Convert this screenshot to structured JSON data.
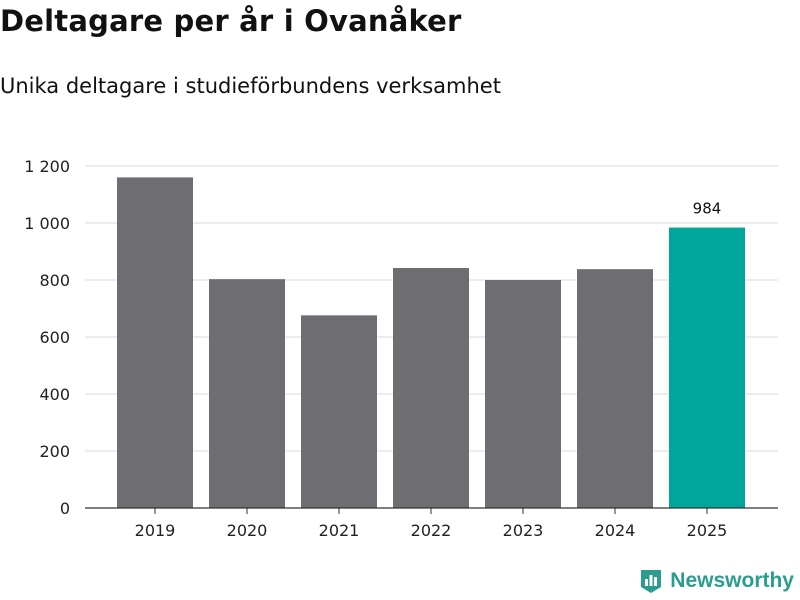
{
  "header": {
    "title": "Deltagare per år i Ovanåker",
    "subtitle": "Unika deltagare i studieförbundens verksamhet"
  },
  "brand": {
    "name": "Newsworthy",
    "icon": "newsworthy-logo-icon",
    "color": "#2a9d8f"
  },
  "chart_data": {
    "type": "bar",
    "title": "Deltagare per år i Ovanåker",
    "subtitle": "Unika deltagare i studieförbundens verksamhet",
    "xlabel": "",
    "ylabel": "",
    "categories": [
      "2019",
      "2020",
      "2021",
      "2022",
      "2023",
      "2024",
      "2025"
    ],
    "values": [
      1160,
      803,
      676,
      842,
      800,
      838,
      984
    ],
    "highlight_index": 6,
    "data_labels": [
      {
        "index": 6,
        "text": "984"
      }
    ],
    "ylim": [
      0,
      1200
    ],
    "yticks": [
      0,
      200,
      400,
      600,
      800,
      1000,
      1200
    ],
    "ytick_labels": [
      "0",
      "200",
      "400",
      "600",
      "800",
      "1 000",
      "1 200"
    ],
    "grid": true,
    "colors": {
      "bar": "#6e6d72",
      "highlight": "#00a69a",
      "grid": "#d9d9d9",
      "axis": "#333333"
    }
  }
}
